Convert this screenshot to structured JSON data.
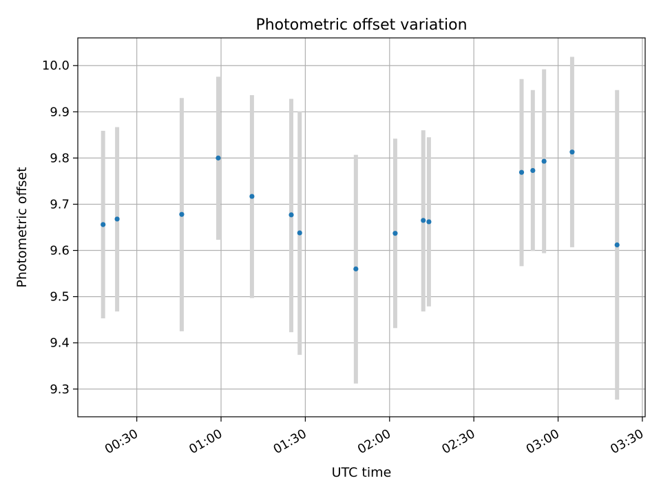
{
  "chart_data": {
    "type": "scatter",
    "title": "Photometric offset variation",
    "xlabel": "UTC time",
    "ylabel": "Photometric offset",
    "xlim": [
      "00:09",
      "03:31"
    ],
    "ylim": [
      9.24,
      10.06
    ],
    "x_ticks": [
      "00:30",
      "01:00",
      "01:30",
      "02:00",
      "02:30",
      "03:00",
      "03:30"
    ],
    "y_ticks": [
      9.3,
      9.4,
      9.5,
      9.6,
      9.7,
      9.8,
      9.9,
      10.0
    ],
    "y_tick_labels": [
      "9.3",
      "9.4",
      "9.5",
      "9.6",
      "9.7",
      "9.8",
      "9.9",
      "10.0"
    ],
    "grid": true,
    "marker_color": "#1f77b4",
    "errorbar_color": "#d3d3d3",
    "points": [
      {
        "x": "00:18",
        "y": 9.656,
        "ylow": 9.453,
        "yhigh": 9.859
      },
      {
        "x": "00:23",
        "y": 9.668,
        "ylow": 9.468,
        "yhigh": 9.867
      },
      {
        "x": "00:46",
        "y": 9.678,
        "ylow": 9.425,
        "yhigh": 9.93
      },
      {
        "x": "00:59",
        "y": 9.8,
        "ylow": 9.623,
        "yhigh": 9.976
      },
      {
        "x": "01:11",
        "y": 9.717,
        "ylow": 9.497,
        "yhigh": 9.936
      },
      {
        "x": "01:25",
        "y": 9.677,
        "ylow": 9.423,
        "yhigh": 9.928
      },
      {
        "x": "01:28",
        "y": 9.638,
        "ylow": 9.374,
        "yhigh": 9.901
      },
      {
        "x": "01:48",
        "y": 9.56,
        "ylow": 9.312,
        "yhigh": 9.807
      },
      {
        "x": "02:02",
        "y": 9.637,
        "ylow": 9.432,
        "yhigh": 9.842
      },
      {
        "x": "02:12",
        "y": 9.665,
        "ylow": 9.468,
        "yhigh": 9.86
      },
      {
        "x": "02:14",
        "y": 9.662,
        "ylow": 9.479,
        "yhigh": 9.845
      },
      {
        "x": "02:47",
        "y": 9.769,
        "ylow": 9.566,
        "yhigh": 9.971
      },
      {
        "x": "02:51",
        "y": 9.773,
        "ylow": 9.599,
        "yhigh": 9.947
      },
      {
        "x": "02:55",
        "y": 9.793,
        "ylow": 9.594,
        "yhigh": 9.992
      },
      {
        "x": "03:05",
        "y": 9.813,
        "ylow": 9.607,
        "yhigh": 10.019
      },
      {
        "x": "03:21",
        "y": 9.612,
        "ylow": 9.277,
        "yhigh": 9.947
      }
    ]
  }
}
